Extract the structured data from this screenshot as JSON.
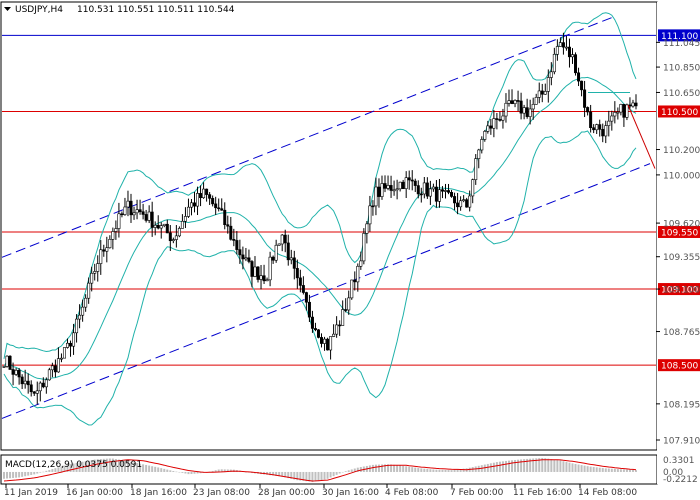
{
  "header": {
    "symbol": "USDJPY,H4",
    "ohlc": "110.531 110.551 110.511 110.544"
  },
  "macd": {
    "label": "MACD(12,26,9) 0.0375 0.0591",
    "axis_ticks": [
      "0.3301",
      "0.00",
      "-0.2212"
    ],
    "axis_tick_values": [
      0.3301,
      0.0,
      -0.2212
    ]
  },
  "colors": {
    "candle": "#000000",
    "bollinger": "#20b2aa",
    "channel": "#0000cd",
    "resistance": "#cc0000",
    "macd_hist": "#c0c0c0",
    "macd_signal": "#dd0000",
    "label_red": "#dd0000",
    "label_blue": "#0000cc"
  },
  "chart_data": {
    "type": "candlestick",
    "symbol": "USDJPY",
    "timeframe": "H4",
    "y_range": [
      107.91,
      111.3
    ],
    "y_ticks": [
      "111.045",
      "110.850",
      "110.650",
      "110.200",
      "110.000",
      "109.620",
      "109.355",
      "109.100",
      "108.765",
      "108.195",
      "107.910"
    ],
    "y_tick_values": [
      111.045,
      110.85,
      110.65,
      110.2,
      110.0,
      109.62,
      109.355,
      109.1,
      108.765,
      108.195,
      107.91
    ],
    "x_ticks": [
      "11 Jan 2019",
      "16 Jan 00:00",
      "18 Jan 16:00",
      "23 Jan 08:00",
      "28 Jan 00:00",
      "30 Jan 16:00",
      "4 Feb 08:00",
      "7 Feb 00:00",
      "11 Feb 16:00",
      "14 Feb 08:00"
    ],
    "horizontal_levels": [
      {
        "label": "111.100",
        "value": 111.1,
        "color": "#0000cc"
      },
      {
        "label": "110.500",
        "value": 110.5,
        "color": "#dd0000"
      },
      {
        "label": "109.550",
        "value": 109.55,
        "color": "#dd0000"
      },
      {
        "label": "109.100",
        "value": 109.1,
        "color": "#dd0000"
      },
      {
        "label": "108.500",
        "value": 108.5,
        "color": "#dd0000"
      }
    ],
    "current_price": 110.544,
    "close_path": [
      108.55,
      108.4,
      108.25,
      108.45,
      108.6,
      108.9,
      109.3,
      109.55,
      109.75,
      109.7,
      109.6,
      109.5,
      109.75,
      109.85,
      109.7,
      109.45,
      109.25,
      109.2,
      109.55,
      109.15,
      108.85,
      108.65,
      108.9,
      109.3,
      109.85,
      109.9,
      109.95,
      109.9,
      109.85,
      109.8,
      109.75,
      110.3,
      110.45,
      110.55,
      110.5,
      110.65,
      111.05,
      110.9,
      110.4,
      110.35,
      110.5,
      110.55
    ],
    "macd_histogram_path": [
      -0.15,
      -0.12,
      -0.05,
      0.05,
      0.15,
      0.22,
      0.28,
      0.3,
      0.24,
      0.17,
      0.1,
      0.02,
      -0.05,
      -0.02,
      0.06,
      0.05,
      -0.02,
      -0.06,
      -0.1,
      -0.18,
      -0.22,
      -0.15,
      0.0,
      0.1,
      0.16,
      0.17,
      0.13,
      0.08,
      0.05,
      0.04,
      0.08,
      0.15,
      0.22,
      0.26,
      0.29,
      0.31,
      0.26,
      0.18,
      0.12,
      0.08,
      0.06,
      0.04
    ],
    "macd_signal_path": [
      -0.2,
      -0.17,
      -0.13,
      -0.06,
      0.02,
      0.1,
      0.17,
      0.23,
      0.27,
      0.25,
      0.18,
      0.1,
      0.03,
      -0.01,
      0.0,
      0.02,
      0.0,
      -0.04,
      -0.09,
      -0.15,
      -0.2,
      -0.18,
      -0.08,
      0.03,
      0.1,
      0.15,
      0.15,
      0.11,
      0.08,
      0.06,
      0.05,
      0.08,
      0.14,
      0.2,
      0.24,
      0.27,
      0.27,
      0.23,
      0.17,
      0.12,
      0.08,
      0.05
    ]
  }
}
